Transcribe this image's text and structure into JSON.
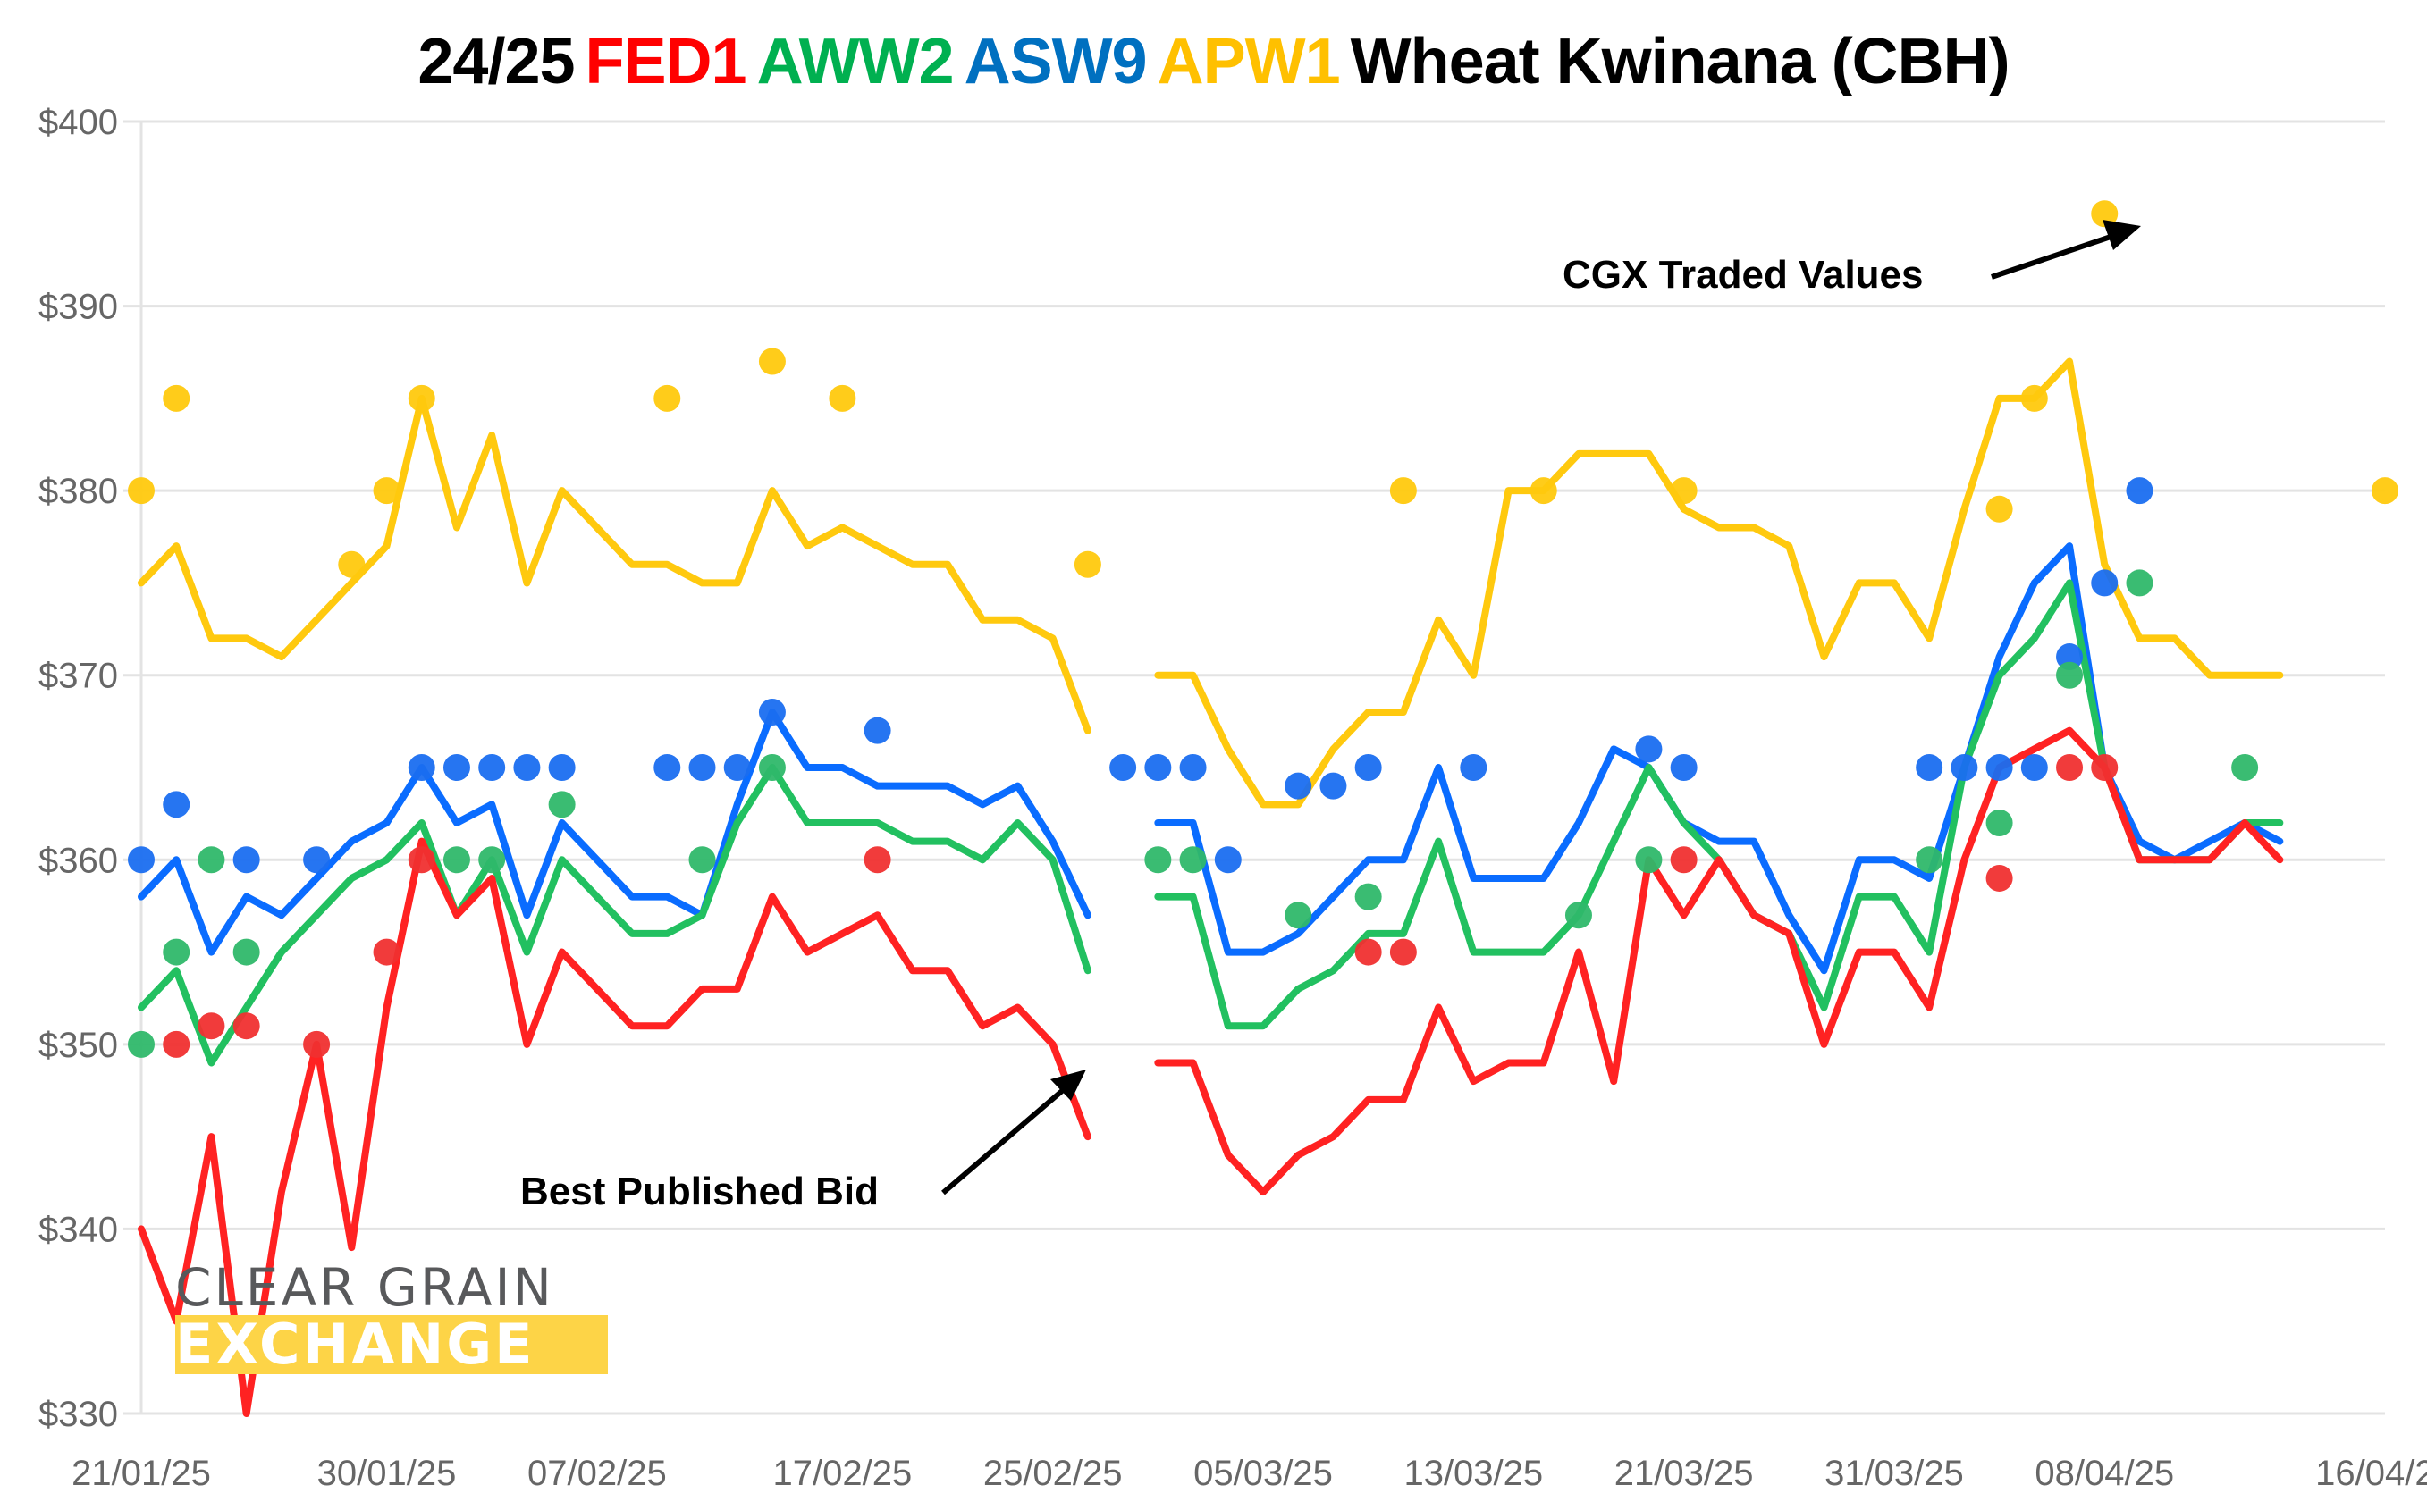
{
  "chart_data": {
    "type": "line",
    "title_parts": [
      {
        "text": "24/25",
        "color": "#000000"
      },
      {
        "text": "FED1",
        "color": "#ff0000"
      },
      {
        "text": "AWW2",
        "color": "#00b050"
      },
      {
        "text": "ASW9",
        "color": "#0070c0"
      },
      {
        "text": "APW1",
        "color": "#ffc000"
      },
      {
        "text": "Wheat Kwinana (CBH)",
        "color": "#000000"
      }
    ],
    "xlabel": "",
    "ylabel": "",
    "ylim": [
      330,
      400
    ],
    "yticks": [
      330,
      340,
      350,
      360,
      370,
      380,
      390,
      400
    ],
    "ytick_format": "$",
    "x_count": 65,
    "xtick_labels": [
      {
        "i": 0,
        "label": "21/01/25"
      },
      {
        "i": 7,
        "label": "30/01/25"
      },
      {
        "i": 13,
        "label": "07/02/25"
      },
      {
        "i": 20,
        "label": "17/02/25"
      },
      {
        "i": 26,
        "label": "25/02/25"
      },
      {
        "i": 32,
        "label": "05/03/25"
      },
      {
        "i": 38,
        "label": "13/03/25"
      },
      {
        "i": 44,
        "label": "21/03/25"
      },
      {
        "i": 50,
        "label": "31/03/25"
      },
      {
        "i": 56,
        "label": "08/04/25"
      },
      {
        "i": 64,
        "label": "16/04/25"
      }
    ],
    "grid": true,
    "series_lines": [
      {
        "name": "APW1 Best Published Bid",
        "color": "#ffc90e",
        "values": [
          375,
          377,
          372,
          372,
          371,
          373,
          375,
          377,
          385,
          378,
          383,
          375,
          380,
          378,
          376,
          376,
          375,
          375,
          380,
          377,
          378,
          377,
          376,
          376,
          373,
          373,
          372,
          367,
          null,
          370,
          370,
          366,
          363,
          363,
          366,
          368,
          368,
          373,
          370,
          380,
          380,
          382,
          382,
          382,
          379,
          378,
          378,
          377,
          371,
          375,
          375,
          372,
          379,
          385,
          385,
          387,
          376,
          372,
          372,
          370,
          370,
          370,
          null,
          null,
          null
        ]
      },
      {
        "name": "ASW9 Best Published Bid",
        "color": "#0a6cff",
        "values": [
          358,
          360,
          355,
          358,
          357,
          359,
          361,
          362,
          365,
          362,
          363,
          357,
          362,
          360,
          358,
          358,
          357,
          363,
          368,
          365,
          365,
          364,
          364,
          364,
          363,
          364,
          361,
          357,
          null,
          362,
          362,
          355,
          355,
          356,
          358,
          360,
          360,
          365,
          359,
          359,
          359,
          362,
          366,
          365,
          362,
          361,
          361,
          357,
          354,
          360,
          360,
          359,
          365,
          371,
          375,
          377,
          365,
          361,
          360,
          361,
          362,
          361,
          null,
          null,
          null
        ]
      },
      {
        "name": "AWW2 Best Published Bid",
        "color": "#22c060",
        "values": [
          352,
          354,
          349,
          352,
          355,
          357,
          359,
          360,
          362,
          357,
          360,
          355,
          360,
          358,
          356,
          356,
          357,
          362,
          365,
          362,
          362,
          362,
          361,
          361,
          360,
          362,
          360,
          354,
          null,
          358,
          358,
          351,
          351,
          353,
          354,
          356,
          356,
          361,
          355,
          355,
          355,
          357,
          361,
          365,
          362,
          360,
          357,
          356,
          352,
          358,
          358,
          355,
          365,
          370,
          372,
          375,
          365,
          360,
          360,
          360,
          362,
          362,
          null,
          null,
          null
        ]
      },
      {
        "name": "FED1 Best Published Bid",
        "color": "#ff2222",
        "values": [
          340,
          335,
          345,
          330,
          342,
          350,
          339,
          352,
          361,
          357,
          359,
          350,
          355,
          353,
          351,
          351,
          353,
          353,
          358,
          355,
          356,
          357,
          354,
          354,
          351,
          352,
          350,
          345,
          null,
          349,
          349,
          344,
          342,
          344,
          345,
          347,
          347,
          352,
          348,
          349,
          349,
          355,
          348,
          360,
          357,
          360,
          357,
          356,
          350,
          355,
          355,
          352,
          360,
          365,
          366,
          367,
          365,
          360,
          360,
          360,
          362,
          360,
          null,
          null,
          null
        ]
      }
    ],
    "series_points": [
      {
        "name": "APW1 CGX Traded",
        "color": "#ffc90e",
        "points": [
          [
            0,
            380
          ],
          [
            1,
            385
          ],
          [
            6,
            376
          ],
          [
            7,
            380
          ],
          [
            8,
            385
          ],
          [
            15,
            385
          ],
          [
            18,
            387
          ],
          [
            20,
            385
          ],
          [
            27,
            376
          ],
          [
            36,
            380
          ],
          [
            40,
            380
          ],
          [
            44,
            380
          ],
          [
            53,
            379
          ],
          [
            54,
            385
          ],
          [
            56,
            395
          ],
          [
            64,
            380
          ]
        ]
      },
      {
        "name": "ASW9 CGX Traded",
        "color": "#1a6ef0",
        "points": [
          [
            0,
            360
          ],
          [
            1,
            363
          ],
          [
            3,
            360
          ],
          [
            5,
            360
          ],
          [
            8,
            365
          ],
          [
            9,
            365
          ],
          [
            10,
            365
          ],
          [
            11,
            365
          ],
          [
            12,
            365
          ],
          [
            15,
            365
          ],
          [
            16,
            365
          ],
          [
            17,
            365
          ],
          [
            18,
            368
          ],
          [
            21,
            367
          ],
          [
            28,
            365
          ],
          [
            29,
            365
          ],
          [
            30,
            365
          ],
          [
            31,
            360
          ],
          [
            33,
            364
          ],
          [
            34,
            364
          ],
          [
            35,
            365
          ],
          [
            38,
            365
          ],
          [
            43,
            366
          ],
          [
            44,
            365
          ],
          [
            51,
            365
          ],
          [
            52,
            365
          ],
          [
            53,
            365
          ],
          [
            54,
            365
          ],
          [
            55,
            371
          ],
          [
            56,
            375
          ],
          [
            57,
            380
          ]
        ]
      },
      {
        "name": "AWW2 CGX Traded",
        "color": "#2fb86a",
        "points": [
          [
            0,
            350
          ],
          [
            1,
            355
          ],
          [
            2,
            360
          ],
          [
            3,
            355
          ],
          [
            9,
            360
          ],
          [
            10,
            360
          ],
          [
            12,
            363
          ],
          [
            16,
            360
          ],
          [
            18,
            365
          ],
          [
            29,
            360
          ],
          [
            30,
            360
          ],
          [
            33,
            357
          ],
          [
            35,
            358
          ],
          [
            41,
            357
          ],
          [
            43,
            360
          ],
          [
            51,
            360
          ],
          [
            53,
            362
          ],
          [
            55,
            370
          ],
          [
            57,
            375
          ],
          [
            60,
            365
          ]
        ]
      },
      {
        "name": "FED1 CGX Traded",
        "color": "#f03030",
        "points": [
          [
            1,
            350
          ],
          [
            2,
            351
          ],
          [
            3,
            351
          ],
          [
            5,
            350
          ],
          [
            7,
            355
          ],
          [
            8,
            360
          ],
          [
            21,
            360
          ],
          [
            35,
            355
          ],
          [
            36,
            355
          ],
          [
            44,
            360
          ],
          [
            53,
            359
          ],
          [
            55,
            365
          ],
          [
            56,
            365
          ]
        ]
      }
    ],
    "annotations": [
      {
        "text": "CGX Traded Values",
        "points_to": "APW1 CGX Traded on 08/04/25 at $395"
      },
      {
        "text": "Best Published Bid",
        "points_to": "FED1 line near 25/02/25"
      }
    ]
  },
  "logo": {
    "line1": "CLEAR GRAIN",
    "line2": "EXCHANGE"
  }
}
